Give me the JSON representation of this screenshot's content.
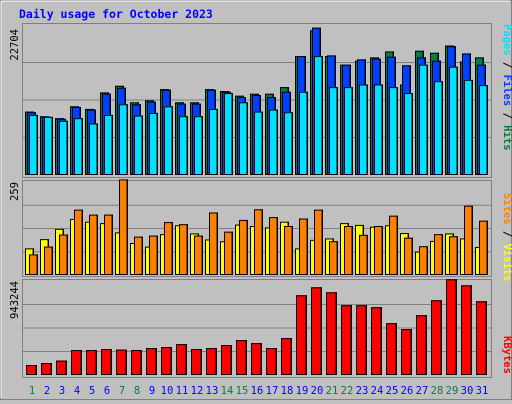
{
  "chart_data": [
    {
      "type": "bar",
      "title": "Daily usage for October 2023",
      "y_max_label": "22704",
      "ymax": 22704,
      "side_labels": [
        "Pages",
        "Files",
        "Hits"
      ],
      "categories": [
        "1",
        "2",
        "3",
        "4",
        "5",
        "6",
        "7",
        "8",
        "9",
        "10",
        "11",
        "12",
        "13",
        "14",
        "15",
        "16",
        "17",
        "18",
        "19",
        "20",
        "21",
        "22",
        "23",
        "24",
        "25",
        "26",
        "27",
        "28",
        "29",
        "30",
        "31"
      ],
      "series": [
        {
          "name": "Hits",
          "color": "#008040",
          "values": [
            9600,
            8900,
            8600,
            10400,
            10000,
            12500,
            13500,
            11000,
            11300,
            13000,
            11000,
            11000,
            13000,
            12700,
            12000,
            12300,
            12300,
            13300,
            18000,
            21900,
            18000,
            16700,
            17300,
            17800,
            18700,
            13700,
            18800,
            18500,
            19600,
            17200,
            17800
          ]
        },
        {
          "name": "Files",
          "color": "#0040ff",
          "values": [
            9500,
            8800,
            8500,
            10300,
            9900,
            12300,
            13200,
            10700,
            11100,
            12900,
            10800,
            10800,
            12900,
            12600,
            11800,
            12100,
            11800,
            12600,
            18000,
            22300,
            18100,
            16700,
            17500,
            17600,
            17900,
            16600,
            17800,
            17300,
            19500,
            18400,
            16700
          ]
        },
        {
          "name": "Pages",
          "color": "#00e0ff",
          "values": [
            9100,
            8800,
            8200,
            8600,
            7800,
            9100,
            10700,
            9000,
            9400,
            10400,
            8900,
            8900,
            10000,
            12400,
            11000,
            9600,
            9900,
            9500,
            12600,
            18000,
            13300,
            13300,
            13700,
            13700,
            13300,
            12400,
            16700,
            14200,
            16400,
            14400,
            13600
          ]
        }
      ]
    },
    {
      "type": "bar",
      "y_max_label": "259",
      "ymax": 259,
      "side_labels": [
        "Sites",
        "Visits"
      ],
      "categories": [
        "1",
        "2",
        "3",
        "4",
        "5",
        "6",
        "7",
        "8",
        "9",
        "10",
        "11",
        "12",
        "13",
        "14",
        "15",
        "16",
        "17",
        "18",
        "19",
        "20",
        "21",
        "22",
        "23",
        "24",
        "25",
        "26",
        "27",
        "28",
        "29",
        "30",
        "31"
      ],
      "series": [
        {
          "name": "Sites",
          "color": "#ffff00",
          "values": [
            75,
            101,
            130,
            158,
            150,
            146,
            120,
            90,
            80,
            115,
            140,
            117,
            100,
            95,
            142,
            138,
            134,
            150,
            75,
            99,
            103,
            146,
            141,
            136,
            140,
            118,
            66,
            96,
            117,
            103,
            79
          ]
        },
        {
          "name": "Visits",
          "color": "#ff8000",
          "values": [
            58,
            80,
            114,
            184,
            170,
            170,
            269,
            108,
            111,
            149,
            143,
            111,
            176,
            122,
            155,
            185,
            163,
            138,
            159,
            184,
            95,
            138,
            113,
            138,
            167,
            105,
            81,
            115,
            109,
            195,
            153
          ]
        }
      ]
    },
    {
      "type": "bar",
      "y_max_label": "943244",
      "ymax": 943244,
      "side_labels": [
        "KBytes"
      ],
      "categories": [
        "1",
        "2",
        "3",
        "4",
        "5",
        "6",
        "7",
        "8",
        "9",
        "10",
        "11",
        "12",
        "13",
        "14",
        "15",
        "16",
        "17",
        "18",
        "19",
        "20",
        "21",
        "22",
        "23",
        "24",
        "25",
        "26",
        "27",
        "28",
        "29",
        "30",
        "31"
      ],
      "series": [
        {
          "name": "KBytes",
          "color": "#ff0000",
          "values": [
            100000,
            120000,
            145000,
            250000,
            250000,
            260000,
            255000,
            250000,
            270000,
            280000,
            310000,
            260000,
            270000,
            300000,
            350000,
            320000,
            270000,
            370000,
            800000,
            880000,
            830000,
            700000,
            700000,
            680000,
            520000,
            460000,
            600000,
            750000,
            960000,
            900000,
            740000
          ]
        }
      ]
    }
  ],
  "x_label_colors": {
    "weekday": "#0000ff",
    "weekend": "#008040"
  },
  "weekend_days": [
    "1",
    "7",
    "8",
    "14",
    "15",
    "21",
    "22",
    "28",
    "29"
  ],
  "colors": {
    "background": "#c0c0c0",
    "title": "#0000ff",
    "frame_light": "#ffffff",
    "frame_dark": "#808080",
    "gridline": "#808080",
    "separator": "#000000",
    "label_sites": "#ffff00",
    "label_visits": "#ff8000",
    "label_kbytes": "#ff0000",
    "label_pages": "#00e0ff",
    "label_files": "#0040ff",
    "label_hits": "#008040"
  }
}
